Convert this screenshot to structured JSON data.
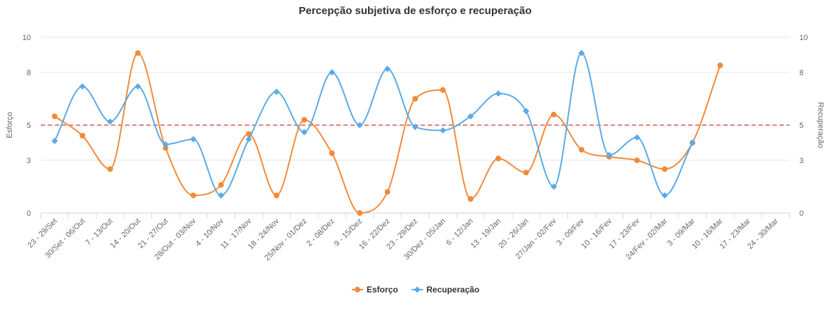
{
  "chart_data": {
    "type": "line",
    "title": "Percepção subjetiva de esforço e recuperação",
    "ylabel_left": "Esforço",
    "ylabel_right": "Recuperação",
    "ylim": [
      0,
      10
    ],
    "y_ticks": [
      0,
      3,
      5,
      8,
      10
    ],
    "reference_line": {
      "value": 5,
      "color": "#cc0000",
      "style": "dashed"
    },
    "categories": [
      "23 - 29/Set",
      "30/Set - 06/Out",
      "7 - 13/Out",
      "14 - 20/Out",
      "21 - 27/Out",
      "28/Out - 03/Nov",
      "4 - 10/Nov",
      "11 - 17/Nov",
      "18 - 24/Nov",
      "25/Nov - 01/Dez",
      "2 - 08/Dez",
      "9 - 15/Dez",
      "16 - 22/Dez",
      "23 - 29/Dez",
      "30/Dez - 05/Jan",
      "6 - 12/Jan",
      "13 - 19/Jan",
      "20 - 26/Jan",
      "27/Jan - 02/Fev",
      "3 - 09/Fev",
      "10 - 16/Fev",
      "17 - 23/Fev",
      "24/Fev - 02/Mar",
      "3 - 09/Mar",
      "10 - 16/Mar",
      "17 - 23/Mar",
      "24 - 30/Mar"
    ],
    "series": [
      {
        "name": "Esforço",
        "color": "#f28a3a",
        "marker": "circle",
        "values": [
          5.5,
          4.4,
          2.5,
          9.1,
          3.7,
          1.0,
          1.6,
          4.5,
          1.0,
          5.3,
          3.4,
          0.0,
          1.2,
          6.5,
          7.0,
          0.8,
          3.1,
          2.3,
          5.6,
          3.6,
          3.2,
          3.0,
          2.5,
          4.0,
          8.4,
          null,
          null
        ]
      },
      {
        "name": "Recuperação",
        "color": "#5aaae6",
        "marker": "diamond",
        "values": [
          4.1,
          7.2,
          5.2,
          7.2,
          3.9,
          4.2,
          1.0,
          4.2,
          6.9,
          4.6,
          8.0,
          5.0,
          8.2,
          4.9,
          4.7,
          5.5,
          6.8,
          5.8,
          1.5,
          9.1,
          3.3,
          4.3,
          1.0,
          4.0,
          null,
          null,
          null
        ]
      }
    ],
    "legend": "bottom-center",
    "grid": true
  }
}
